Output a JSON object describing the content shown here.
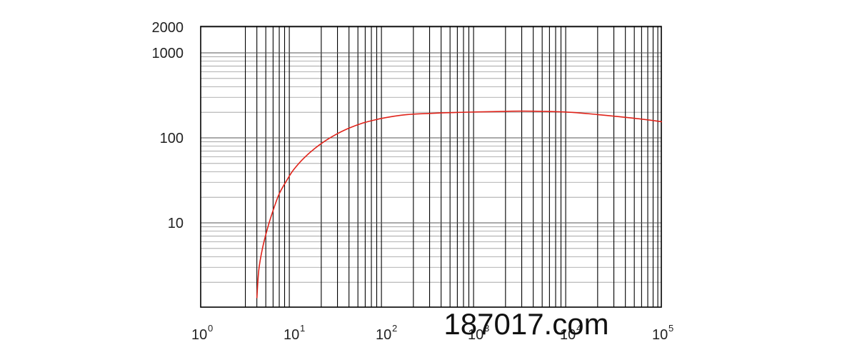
{
  "watermark": "187017.com",
  "colors": {
    "curve": "#e0241b",
    "grid": "#000000",
    "minor_grid": "#9a9a9a"
  },
  "chart_data": {
    "type": "line",
    "title": "",
    "xlabel": "",
    "ylabel": "",
    "x_scale": "log",
    "y_scale": "log",
    "xlim": [
      1,
      100000
    ],
    "ylim": [
      1,
      2000
    ],
    "grid": true,
    "y_tick_labels": [
      {
        "value": 10,
        "label": "10"
      },
      {
        "value": 100,
        "label": "100"
      },
      {
        "value": 1000,
        "label": "1000"
      },
      {
        "value": 2000,
        "label": "2000"
      }
    ],
    "x_tick_labels": [
      {
        "value": 1,
        "base": "10",
        "exp": "0"
      },
      {
        "value": 10,
        "base": "10",
        "exp": "1"
      },
      {
        "value": 100,
        "base": "10",
        "exp": "2"
      },
      {
        "value": 1000,
        "base": "10",
        "exp": "3"
      },
      {
        "value": 10000,
        "base": "10",
        "exp": "4"
      },
      {
        "value": 100000,
        "base": "10",
        "exp": "5"
      }
    ],
    "series": [
      {
        "x": [
          4,
          4.2,
          4.6,
          5.2,
          6,
          7,
          8.5,
          10,
          13,
          17,
          22,
          30,
          40,
          55,
          75,
          100,
          150,
          200,
          300,
          500,
          1000,
          2000,
          3000,
          5000,
          10000,
          20000,
          50000,
          100000
        ],
        "y": [
          1.3,
          2.8,
          5,
          8.5,
          14,
          22,
          32,
          42,
          58,
          75,
          92,
          112,
          130,
          148,
          162,
          173,
          185,
          190,
          194,
          198,
          202,
          205,
          206,
          205,
          200,
          188,
          170,
          155
        ]
      }
    ]
  }
}
